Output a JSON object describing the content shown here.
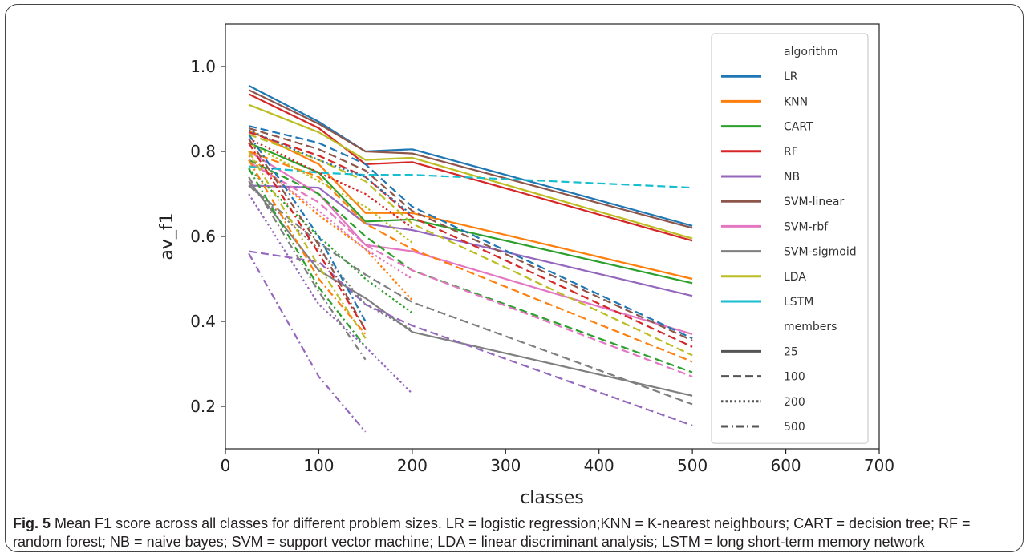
{
  "caption": {
    "label": "Fig. 5",
    "text": "Mean F1 score across all classes for different problem sizes. LR = logistic regression;KNN = K-nearest neighbours; CART = decision tree; RF = random forest; NB = naive bayes; SVM = support vector machine; LDA = linear discriminant analysis; LSTM = long short-term memory network"
  },
  "chart_data": {
    "type": "line",
    "title": "",
    "xlabel": "classes",
    "ylabel": "av_f1",
    "xlim": [
      0,
      700
    ],
    "ylim": [
      0.1,
      1.1
    ],
    "xticks": [
      0,
      100,
      200,
      300,
      400,
      500,
      600,
      700
    ],
    "yticks": [
      0.2,
      0.4,
      0.6,
      0.8,
      1.0
    ],
    "ytick_labels": [
      "0.2",
      "0.4",
      "0.6",
      "0.8",
      "1.0"
    ],
    "grid": false,
    "legend": {
      "placement": "upper-right",
      "hue_title": "algorithm",
      "style_title": "members",
      "algorithms": [
        {
          "name": "LR",
          "color": "#1f77b4"
        },
        {
          "name": "KNN",
          "color": "#ff7f0e"
        },
        {
          "name": "CART",
          "color": "#2ca02c"
        },
        {
          "name": "RF",
          "color": "#d62728"
        },
        {
          "name": "NB",
          "color": "#9467bd"
        },
        {
          "name": "SVM-linear",
          "color": "#8c564b"
        },
        {
          "name": "SVM-rbf",
          "color": "#e377c2"
        },
        {
          "name": "SVM-sigmoid",
          "color": "#7f7f7f"
        },
        {
          "name": "LDA",
          "color": "#bcbd22"
        },
        {
          "name": "LSTM",
          "color": "#17becf"
        }
      ],
      "members": [
        {
          "name": "25",
          "dash": "solid"
        },
        {
          "name": "100",
          "dash": "dashed"
        },
        {
          "name": "200",
          "dash": "dotted"
        },
        {
          "name": "500",
          "dash": "dashdot"
        }
      ]
    },
    "series": [
      {
        "algorithm": "LR",
        "members": "25",
        "x": [
          25,
          100,
          150,
          200,
          500
        ],
        "y": [
          0.955,
          0.87,
          0.8,
          0.805,
          0.625
        ]
      },
      {
        "algorithm": "SVM-linear",
        "members": "25",
        "x": [
          25,
          100,
          150,
          200,
          500
        ],
        "y": [
          0.945,
          0.865,
          0.8,
          0.795,
          0.62
        ]
      },
      {
        "algorithm": "RF",
        "members": "25",
        "x": [
          25,
          100,
          150,
          200,
          500
        ],
        "y": [
          0.935,
          0.855,
          0.77,
          0.775,
          0.59
        ]
      },
      {
        "algorithm": "LDA",
        "members": "25",
        "x": [
          25,
          100,
          150,
          200,
          500
        ],
        "y": [
          0.91,
          0.845,
          0.78,
          0.785,
          0.595
        ]
      },
      {
        "algorithm": "KNN",
        "members": "25",
        "x": [
          25,
          100,
          150,
          200,
          500
        ],
        "y": [
          0.85,
          0.77,
          0.655,
          0.655,
          0.5
        ]
      },
      {
        "algorithm": "CART",
        "members": "25",
        "x": [
          25,
          100,
          150,
          200,
          500
        ],
        "y": [
          0.82,
          0.75,
          0.635,
          0.64,
          0.49
        ]
      },
      {
        "algorithm": "NB",
        "members": "25",
        "x": [
          25,
          100,
          150,
          200,
          500
        ],
        "y": [
          0.72,
          0.715,
          0.63,
          0.615,
          0.46
        ]
      },
      {
        "algorithm": "SVM-rbf",
        "members": "25",
        "x": [
          25,
          100,
          150,
          200,
          500
        ],
        "y": [
          0.8,
          0.7,
          0.58,
          0.565,
          0.37
        ]
      },
      {
        "algorithm": "SVM-sigmoid",
        "members": "25",
        "x": [
          25,
          100,
          150,
          200,
          500
        ],
        "y": [
          0.73,
          0.52,
          0.455,
          0.375,
          0.225
        ]
      },
      {
        "algorithm": "LR",
        "members": "100",
        "x": [
          25,
          100,
          150,
          200,
          500
        ],
        "y": [
          0.86,
          0.82,
          0.77,
          0.67,
          0.36
        ]
      },
      {
        "algorithm": "SVM-linear",
        "members": "100",
        "x": [
          25,
          100,
          150,
          200,
          500
        ],
        "y": [
          0.855,
          0.805,
          0.755,
          0.66,
          0.355
        ]
      },
      {
        "algorithm": "RF",
        "members": "100",
        "x": [
          25,
          100,
          150,
          200,
          500
        ],
        "y": [
          0.845,
          0.79,
          0.74,
          0.645,
          0.34
        ]
      },
      {
        "algorithm": "LDA",
        "members": "100",
        "x": [
          25,
          100,
          150,
          200,
          500
        ],
        "y": [
          0.84,
          0.78,
          0.73,
          0.63,
          0.32
        ]
      },
      {
        "algorithm": "LSTM",
        "members": "100",
        "x": [
          25,
          100,
          150,
          200,
          500
        ],
        "y": [
          0.765,
          0.75,
          0.745,
          0.745,
          0.715
        ]
      },
      {
        "algorithm": "KNN",
        "members": "100",
        "x": [
          25,
          100,
          150,
          200,
          500
        ],
        "y": [
          0.8,
          0.74,
          0.63,
          0.57,
          0.305
        ]
      },
      {
        "algorithm": "CART",
        "members": "100",
        "x": [
          25,
          100,
          150,
          200,
          500
        ],
        "y": [
          0.78,
          0.7,
          0.6,
          0.52,
          0.28
        ]
      },
      {
        "algorithm": "SVM-rbf",
        "members": "100",
        "x": [
          25,
          100,
          150,
          200,
          500
        ],
        "y": [
          0.775,
          0.68,
          0.58,
          0.52,
          0.27
        ]
      },
      {
        "algorithm": "SVM-sigmoid",
        "members": "100",
        "x": [
          25,
          100,
          150,
          200,
          500
        ],
        "y": [
          0.72,
          0.585,
          0.51,
          0.445,
          0.205
        ]
      },
      {
        "algorithm": "NB",
        "members": "100",
        "x": [
          25,
          100,
          150,
          200,
          500
        ],
        "y": [
          0.565,
          0.54,
          0.44,
          0.39,
          0.155
        ]
      },
      {
        "algorithm": "LR",
        "members": "200",
        "x": [
          25,
          100,
          150,
          200
        ],
        "y": [
          0.85,
          0.78,
          0.74,
          0.65
        ]
      },
      {
        "algorithm": "RF",
        "members": "200",
        "x": [
          25,
          100,
          150,
          200
        ],
        "y": [
          0.83,
          0.75,
          0.7,
          0.62
        ]
      },
      {
        "algorithm": "LDA",
        "members": "200",
        "x": [
          25,
          100,
          150,
          200
        ],
        "y": [
          0.82,
          0.73,
          0.67,
          0.585
        ]
      },
      {
        "algorithm": "KNN",
        "members": "200",
        "x": [
          25,
          100,
          150,
          200
        ],
        "y": [
          0.79,
          0.65,
          0.57,
          0.45
        ]
      },
      {
        "algorithm": "SVM-rbf",
        "members": "200",
        "x": [
          25,
          100,
          150,
          200
        ],
        "y": [
          0.78,
          0.66,
          0.57,
          0.5
        ]
      },
      {
        "algorithm": "CART",
        "members": "200",
        "x": [
          25,
          100,
          150,
          200
        ],
        "y": [
          0.76,
          0.6,
          0.5,
          0.42
        ]
      },
      {
        "algorithm": "SVM-sigmoid",
        "members": "200",
        "x": [
          25,
          100,
          150,
          200
        ],
        "y": [
          0.72,
          0.57,
          0.44,
          0.38
        ]
      },
      {
        "algorithm": "NB",
        "members": "200",
        "x": [
          25,
          100,
          150,
          200
        ],
        "y": [
          0.7,
          0.44,
          0.34,
          0.23
        ]
      },
      {
        "algorithm": "LR",
        "members": "500",
        "x": [
          25,
          100,
          150
        ],
        "y": [
          0.84,
          0.6,
          0.4
        ]
      },
      {
        "algorithm": "SVM-linear",
        "members": "500",
        "x": [
          25,
          100,
          150
        ],
        "y": [
          0.83,
          0.58,
          0.38
        ]
      },
      {
        "algorithm": "RF",
        "members": "500",
        "x": [
          25,
          100,
          150
        ],
        "y": [
          0.82,
          0.56,
          0.38
        ]
      },
      {
        "algorithm": "LDA",
        "members": "500",
        "x": [
          25,
          100,
          150
        ],
        "y": [
          0.8,
          0.53,
          0.36
        ]
      },
      {
        "algorithm": "KNN",
        "members": "500",
        "x": [
          25,
          100,
          150
        ],
        "y": [
          0.78,
          0.5,
          0.37
        ]
      },
      {
        "algorithm": "CART",
        "members": "500",
        "x": [
          25,
          100,
          150
        ],
        "y": [
          0.76,
          0.48,
          0.34
        ]
      },
      {
        "algorithm": "SVM-sigmoid",
        "members": "500",
        "x": [
          25,
          100,
          150
        ],
        "y": [
          0.74,
          0.47,
          0.31
        ]
      },
      {
        "algorithm": "NB",
        "members": "500",
        "x": [
          25,
          100,
          150
        ],
        "y": [
          0.56,
          0.27,
          0.14
        ]
      }
    ]
  }
}
